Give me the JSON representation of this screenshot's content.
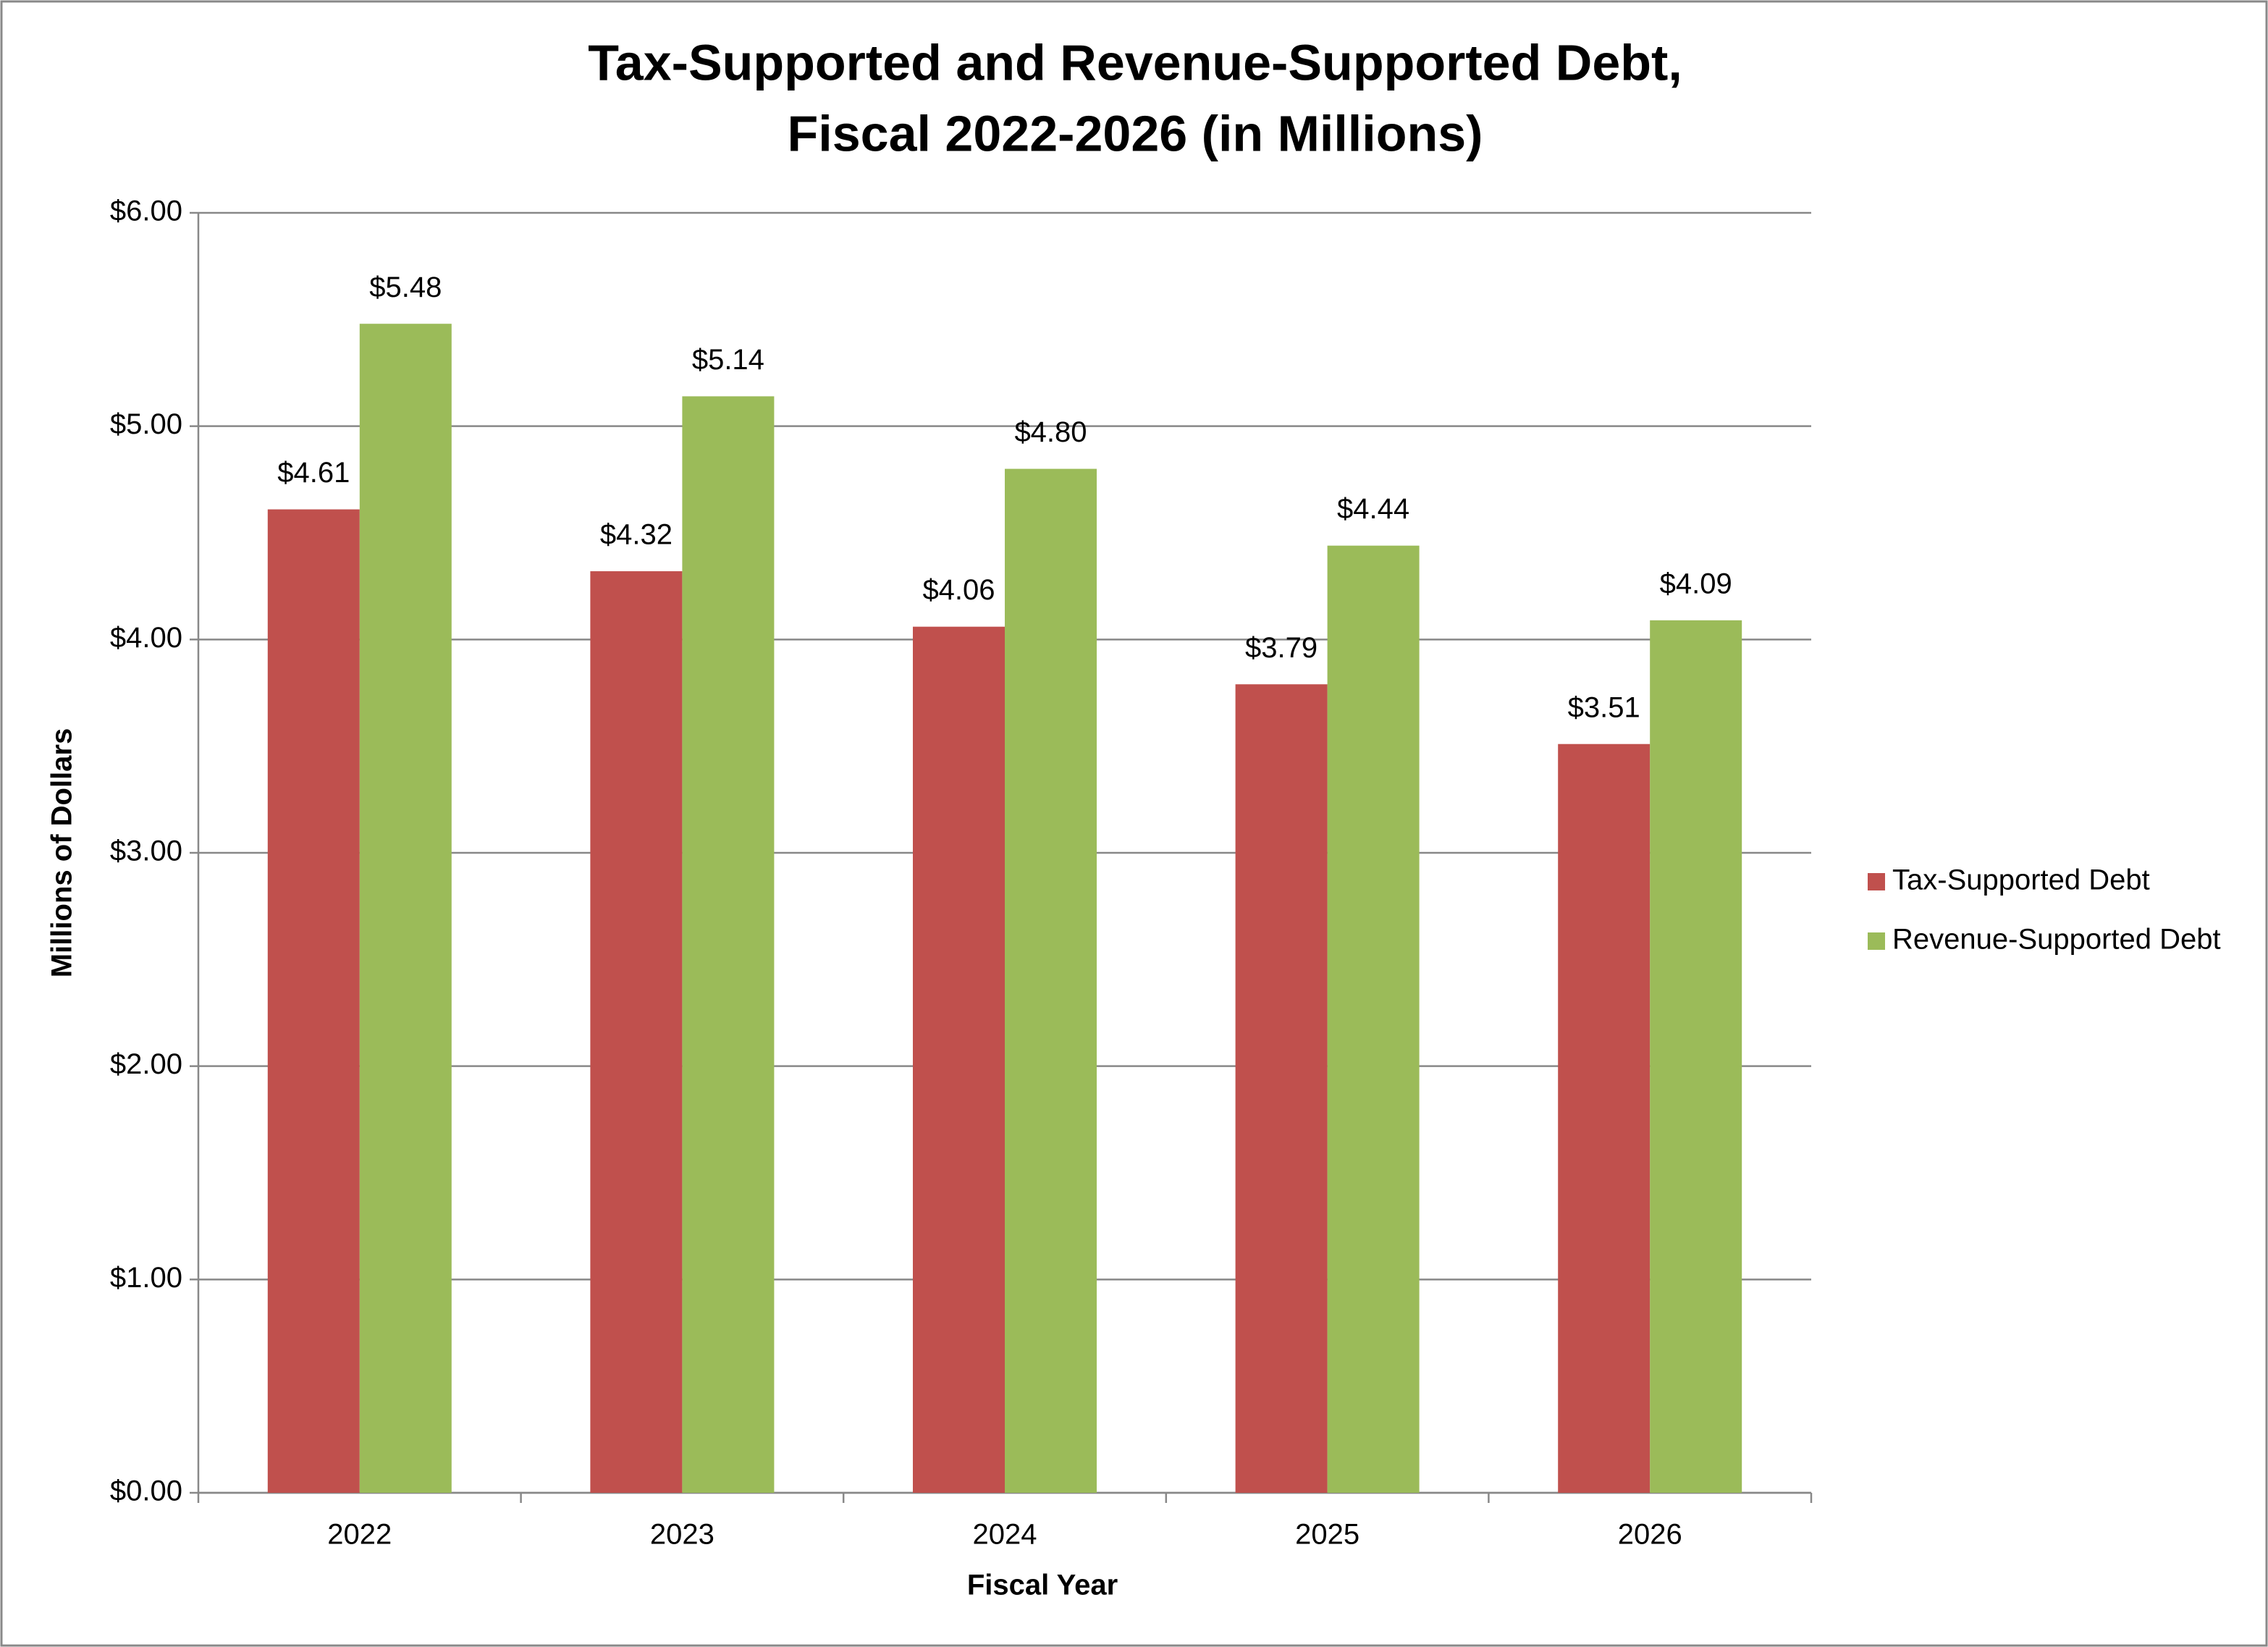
{
  "chart_data": {
    "type": "bar",
    "title": [
      "Tax-Supported and Revenue-Supported Debt,",
      "Fiscal 2022-2026 (in Millions)"
    ],
    "x_label": "Fiscal Year",
    "y_label": "Millions of Dollars",
    "categories": [
      "2022",
      "2023",
      "2024",
      "2025",
      "2026"
    ],
    "series": [
      {
        "name": "Tax-Supported Debt",
        "color": "#c0504d",
        "values": [
          4.61,
          4.32,
          4.06,
          3.79,
          3.51
        ],
        "value_labels": [
          "$4.61",
          "$4.32",
          "$4.06",
          "$3.79",
          "$3.51"
        ]
      },
      {
        "name": "Revenue-Supported Debt",
        "color": "#9bbb59",
        "values": [
          5.48,
          5.14,
          4.8,
          4.44,
          4.09
        ],
        "value_labels": [
          "$5.48",
          "$5.14",
          "$4.80",
          "$4.44",
          "$4.09"
        ]
      }
    ],
    "ylim": [
      0,
      6
    ],
    "yticks": [
      {
        "value": 0,
        "label": "$0.00"
      },
      {
        "value": 1,
        "label": "$1.00"
      },
      {
        "value": 2,
        "label": "$2.00"
      },
      {
        "value": 3,
        "label": "$3.00"
      },
      {
        "value": 4,
        "label": "$4.00"
      },
      {
        "value": 5,
        "label": "$5.00"
      },
      {
        "value": 6,
        "label": "$6.00"
      }
    ],
    "grid": true,
    "legend": "right"
  }
}
